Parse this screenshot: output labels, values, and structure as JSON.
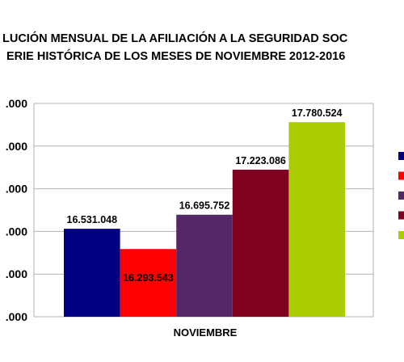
{
  "chart_data": {
    "type": "bar",
    "title_lines": [
      "LUCIÓN MENSUAL DE LA  AFILIACIÓN A LA SEGURIDAD SOC",
      "ERIE HISTÓRICA DE LOS MESES DE NOVIEMBRE 2012-2016"
    ],
    "categories": [
      "NOVIEMBRE"
    ],
    "series": [
      {
        "values": [
          16531048
        ],
        "label": "16.531.048",
        "color": "#000080"
      },
      {
        "values": [
          16293543
        ],
        "label": "16.293.543",
        "color": "#ff0000"
      },
      {
        "values": [
          16695752
        ],
        "label": "16.695.752",
        "color": "#562766"
      },
      {
        "values": [
          17223086
        ],
        "label": "17.223.086",
        "color": "#800020"
      },
      {
        "values": [
          17780524
        ],
        "label": "17.780.524",
        "color": "#aacc00"
      }
    ],
    "ylim": [
      15500000,
      18000000
    ],
    "yticks": [
      15500000,
      16000000,
      16500000,
      17000000,
      17500000,
      18000000
    ],
    "ytick_labels": [
      ".000",
      ".000",
      ".000",
      ".000",
      ".000",
      ".000"
    ],
    "grid": true,
    "legend_position": "right"
  }
}
